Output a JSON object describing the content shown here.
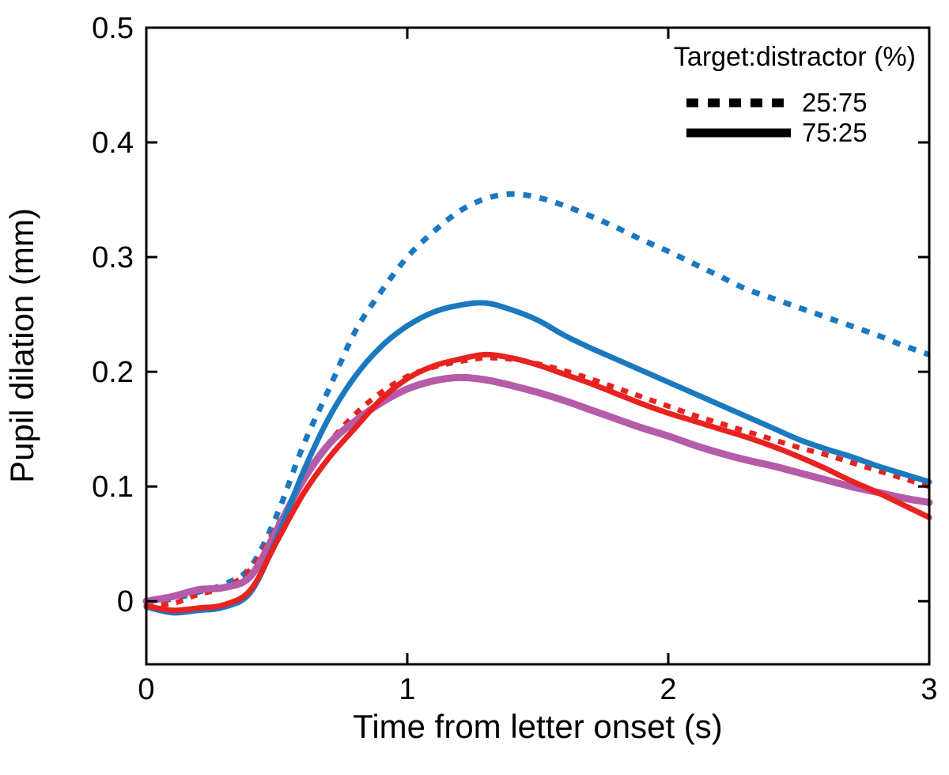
{
  "figure": {
    "background": "#ffffff",
    "axis_color": "#000000"
  },
  "chart_data": {
    "type": "line",
    "title": "",
    "xlabel": "Time from letter onset (s)",
    "ylabel": "Pupil dilation (mm)",
    "xlim": [
      0,
      3
    ],
    "ylim": [
      -0.055,
      0.5
    ],
    "x_ticks": [
      0,
      1,
      2,
      3
    ],
    "x_tick_labels": [
      "0",
      "1",
      "2",
      "3"
    ],
    "y_ticks": [
      0,
      0.1,
      0.2,
      0.3,
      0.4,
      0.5
    ],
    "y_tick_labels": [
      "0",
      "0.1",
      "0.2",
      "0.3",
      "0.4",
      "0.5"
    ],
    "grid": false,
    "legend": {
      "title": "Target:distractor (%)",
      "position": "top-right",
      "sample_color": "#000000",
      "entries": [
        {
          "label": "25:75",
          "style": "dotted"
        },
        {
          "label": "75:25",
          "style": "solid"
        }
      ]
    },
    "x": [
      0.0,
      0.1,
      0.2,
      0.3,
      0.4,
      0.5,
      0.6,
      0.7,
      0.8,
      0.9,
      1.0,
      1.1,
      1.2,
      1.3,
      1.4,
      1.5,
      1.6,
      1.7,
      1.8,
      1.9,
      2.0,
      2.1,
      2.2,
      2.3,
      2.4,
      2.5,
      2.6,
      2.7,
      2.8,
      2.9,
      3.0
    ],
    "series": [
      {
        "name": "blue-25-75",
        "condition": "25:75",
        "color": "#1a79bf",
        "style": "dotted",
        "width": 7,
        "dash": "10 11",
        "values": [
          0.0,
          0.002,
          0.008,
          0.015,
          0.03,
          0.075,
          0.135,
          0.185,
          0.235,
          0.27,
          0.3,
          0.322,
          0.34,
          0.351,
          0.355,
          0.352,
          0.345,
          0.336,
          0.326,
          0.315,
          0.305,
          0.294,
          0.283,
          0.272,
          0.264,
          0.256,
          0.248,
          0.24,
          0.232,
          0.223,
          0.215
        ]
      },
      {
        "name": "red-25-75",
        "condition": "25:75",
        "color": "#e8221f",
        "style": "dotted",
        "width": 6.5,
        "dash": "9 10",
        "values": [
          -0.003,
          -0.002,
          0.006,
          0.012,
          0.028,
          0.065,
          0.105,
          0.138,
          0.163,
          0.182,
          0.196,
          0.204,
          0.209,
          0.212,
          0.211,
          0.207,
          0.201,
          0.194,
          0.186,
          0.178,
          0.17,
          0.162,
          0.155,
          0.148,
          0.141,
          0.134,
          0.128,
          0.121,
          0.114,
          0.107,
          0.1
        ]
      },
      {
        "name": "magenta-75-25",
        "condition": "75:25",
        "color": "#b55ba8",
        "style": "solid",
        "width": 9,
        "dash": "",
        "values": [
          0.0,
          0.004,
          0.01,
          0.012,
          0.022,
          0.062,
          0.105,
          0.137,
          0.157,
          0.173,
          0.185,
          0.192,
          0.195,
          0.193,
          0.188,
          0.182,
          0.175,
          0.167,
          0.159,
          0.151,
          0.144,
          0.136,
          0.129,
          0.123,
          0.118,
          0.112,
          0.106,
          0.1,
          0.095,
          0.09,
          0.086
        ]
      },
      {
        "name": "blue-75-25",
        "condition": "75:25",
        "color": "#1a79bf",
        "style": "solid",
        "width": 7,
        "dash": "",
        "values": [
          -0.005,
          -0.01,
          -0.008,
          -0.005,
          0.008,
          0.055,
          0.112,
          0.16,
          0.196,
          0.222,
          0.24,
          0.252,
          0.258,
          0.26,
          0.254,
          0.245,
          0.232,
          0.221,
          0.211,
          0.201,
          0.191,
          0.181,
          0.171,
          0.161,
          0.151,
          0.141,
          0.133,
          0.126,
          0.118,
          0.111,
          0.104
        ]
      },
      {
        "name": "red-75-25",
        "condition": "75:25",
        "color": "#e8221f",
        "style": "solid",
        "width": 7,
        "dash": "",
        "values": [
          -0.004,
          -0.008,
          -0.006,
          -0.003,
          0.01,
          0.052,
          0.093,
          0.125,
          0.151,
          0.176,
          0.194,
          0.205,
          0.211,
          0.215,
          0.212,
          0.206,
          0.198,
          0.19,
          0.181,
          0.172,
          0.164,
          0.157,
          0.15,
          0.143,
          0.135,
          0.126,
          0.116,
          0.105,
          0.095,
          0.084,
          0.073
        ]
      }
    ]
  }
}
